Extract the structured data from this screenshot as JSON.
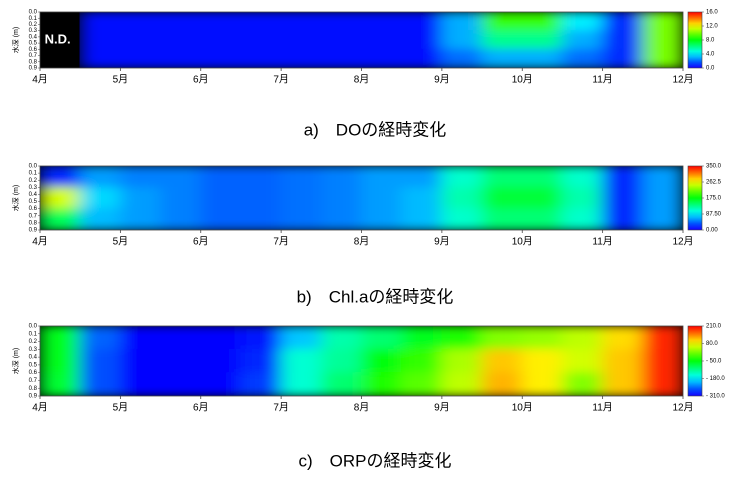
{
  "chart_data": [
    {
      "type": "heatmap",
      "title": "a)　DOの経時変化",
      "y_label": "水深 (m)",
      "annotation": "N.D.",
      "xlim": [
        4,
        12
      ],
      "ylim": [
        0,
        0.9
      ],
      "zlim": [
        0,
        16
      ],
      "xticks": [
        {
          "value": 4,
          "label": "4月"
        },
        {
          "value": 5,
          "label": "5月"
        },
        {
          "value": 6,
          "label": "6月"
        },
        {
          "value": 7,
          "label": "7月"
        },
        {
          "value": 8,
          "label": "8月"
        },
        {
          "value": 9,
          "label": "9月"
        },
        {
          "value": 10,
          "label": "10月"
        },
        {
          "value": 11,
          "label": "11月"
        },
        {
          "value": 12,
          "label": "12月"
        }
      ],
      "yticks": [
        {
          "value": 0,
          "label": "0.0"
        },
        0.1,
        0.2,
        0.3,
        0.4,
        0.5,
        0.6,
        0.7,
        0.8,
        0.9
      ],
      "zticks": [
        {
          "value": 0,
          "label": "0.0"
        },
        {
          "value": 4,
          "label": "4.0"
        },
        {
          "value": 8,
          "label": "8.0"
        },
        {
          "value": 12,
          "label": "12.0"
        },
        {
          "value": 16,
          "label": "16.0"
        }
      ],
      "z": [
        [
          null,
          0.5,
          0.5,
          0.5,
          0.5,
          0.5,
          0.5,
          0.5,
          0.5,
          0.5,
          3,
          9,
          9,
          4,
          1,
          10
        ],
        [
          null,
          0.5,
          0.5,
          0.5,
          0.5,
          0.5,
          0.5,
          0.5,
          0.5,
          0.5,
          3,
          6,
          6,
          3,
          1,
          10
        ],
        [
          null,
          0.5,
          0.5,
          0.5,
          0.5,
          0.5,
          0.5,
          0.5,
          0.5,
          0.5,
          2,
          3,
          3,
          2,
          1,
          10
        ]
      ]
    },
    {
      "type": "heatmap",
      "title": "b)　Chl.aの経時変化",
      "y_label": "水深 (m)",
      "xlim": [
        4,
        12
      ],
      "ylim": [
        0,
        0.9
      ],
      "zlim": [
        0,
        350
      ],
      "xticks": [
        {
          "value": 4,
          "label": "4月"
        },
        {
          "value": 5,
          "label": "5月"
        },
        {
          "value": 6,
          "label": "6月"
        },
        {
          "value": 7,
          "label": "7月"
        },
        {
          "value": 8,
          "label": "8月"
        },
        {
          "value": 9,
          "label": "9月"
        },
        {
          "value": 10,
          "label": "10月"
        },
        {
          "value": 11,
          "label": "11月"
        },
        {
          "value": 12,
          "label": "12月"
        }
      ],
      "yticks": [
        {
          "value": 0,
          "label": "0.0"
        },
        0.1,
        0.2,
        0.3,
        0.4,
        0.5,
        0.6,
        0.7,
        0.8,
        0.9
      ],
      "zticks": [
        {
          "value": 0,
          "label": "0.00"
        },
        {
          "value": 87.5,
          "label": "87.50"
        },
        {
          "value": 175,
          "label": "175.0"
        },
        {
          "value": 262.5,
          "label": "262.5"
        },
        {
          "value": 350,
          "label": "350.0"
        }
      ],
      "z": [
        [
          20,
          60,
          50,
          50,
          40,
          40,
          45,
          50,
          60,
          60,
          110,
          140,
          140,
          110,
          20,
          60
        ],
        [
          250,
          80,
          60,
          50,
          40,
          40,
          45,
          50,
          60,
          70,
          120,
          160,
          160,
          120,
          20,
          60
        ],
        [
          150,
          70,
          60,
          50,
          40,
          40,
          45,
          50,
          60,
          70,
          110,
          140,
          140,
          110,
          20,
          60
        ]
      ]
    },
    {
      "type": "heatmap",
      "title": "c)　ORPの経時変化",
      "y_label": "水深 (m)",
      "xlim": [
        4,
        12
      ],
      "ylim": [
        0,
        0.9
      ],
      "zlim": [
        -310,
        210
      ],
      "xticks": [
        {
          "value": 4,
          "label": "4月"
        },
        {
          "value": 5,
          "label": "5月"
        },
        {
          "value": 6,
          "label": "6月"
        },
        {
          "value": 7,
          "label": "7月"
        },
        {
          "value": 8,
          "label": "8月"
        },
        {
          "value": 9,
          "label": "9月"
        },
        {
          "value": 10,
          "label": "10月"
        },
        {
          "value": 11,
          "label": "11月"
        },
        {
          "value": 12,
          "label": "12月"
        }
      ],
      "yticks": [
        {
          "value": 0,
          "label": "0.0"
        },
        0.1,
        0.2,
        0.3,
        0.4,
        0.5,
        0.6,
        0.7,
        0.8,
        0.9
      ],
      "zticks": [
        {
          "value": 210,
          "label": "210.0"
        },
        {
          "value": 80,
          "label": "80.0"
        },
        {
          "value": -50,
          "label": "- 50.0"
        },
        {
          "value": -180,
          "label": "- 180.0"
        },
        {
          "value": -310,
          "label": "- 310.0"
        }
      ],
      "z": [
        [
          -60,
          -250,
          -300,
          -300,
          -300,
          -290,
          -200,
          -130,
          -100,
          -60,
          -30,
          20,
          30,
          50,
          100,
          190
        ],
        [
          -60,
          -260,
          -300,
          -300,
          -300,
          -280,
          -150,
          -120,
          -50,
          -20,
          40,
          110,
          90,
          60,
          110,
          190
        ],
        [
          -70,
          -260,
          -300,
          -300,
          -300,
          -270,
          -150,
          -100,
          -30,
          0,
          50,
          120,
          90,
          20,
          110,
          190
        ]
      ]
    }
  ]
}
